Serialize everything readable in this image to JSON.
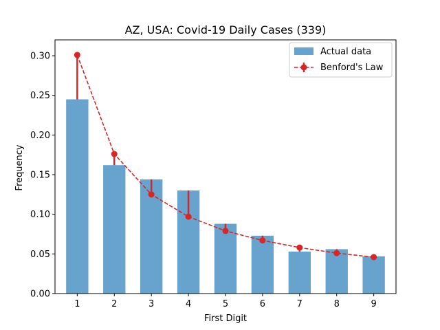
{
  "chart_data": {
    "type": "bar",
    "title": "AZ, USA: Covid-19 Daily Cases (339)",
    "xlabel": "First Digit",
    "ylabel": "Frequency",
    "categories": [
      "1",
      "2",
      "3",
      "4",
      "5",
      "6",
      "7",
      "8",
      "9"
    ],
    "ylim": [
      0,
      0.32
    ],
    "yticks": [
      "0.00",
      "0.05",
      "0.10",
      "0.15",
      "0.20",
      "0.25",
      "0.30"
    ],
    "series": [
      {
        "name": "Actual data",
        "kind": "bar",
        "color": "#1f77b4",
        "values": [
          0.245,
          0.162,
          0.144,
          0.13,
          0.088,
          0.073,
          0.053,
          0.056,
          0.047
        ]
      },
      {
        "name": "Benford's Law",
        "kind": "line-errorbar",
        "color": "#d62728",
        "values": [
          0.301,
          0.176,
          0.125,
          0.097,
          0.079,
          0.067,
          0.058,
          0.051,
          0.046
        ]
      }
    ],
    "legend_position": "top-right",
    "grid": false
  }
}
